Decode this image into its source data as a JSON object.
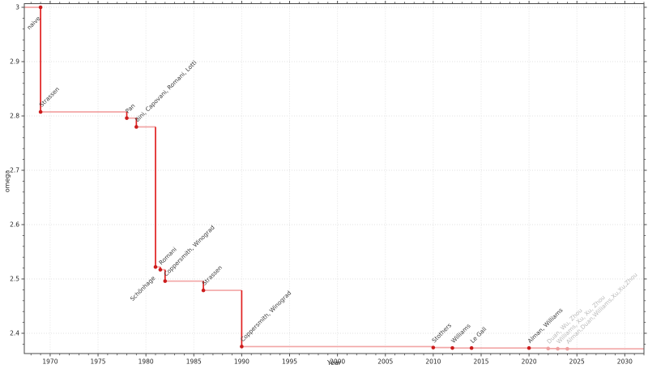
{
  "chart_data": {
    "type": "line",
    "subtype": "step-post",
    "title": "",
    "xlabel": "Year",
    "ylabel": "omega",
    "xlim": [
      1967.3,
      2032.0
    ],
    "ylim": [
      2.3627,
      3.0067
    ],
    "grid": true,
    "legend": false,
    "x_ticks": [
      1970,
      1975,
      1980,
      1985,
      1990,
      1995,
      2000,
      2005,
      2010,
      2015,
      2020,
      2025,
      2030
    ],
    "x_tick_labels": [
      "1970",
      "1975",
      "1980",
      "1985",
      "1990",
      "1995",
      "2000",
      "2005",
      "2010",
      "2015",
      "2020",
      "2025",
      "2030"
    ],
    "x_minor_step": 1,
    "y_ticks": [
      2.4,
      2.5,
      2.6,
      2.7,
      2.8,
      2.9,
      3.0
    ],
    "y_tick_labels": [
      "2.4",
      "2.5",
      "2.6",
      "2.7",
      "2.8",
      "2.9",
      "3"
    ],
    "y_minor_step": 0.02,
    "points": [
      {
        "year": 1969,
        "omega": 3.0,
        "label": "naive",
        "label_side": "below",
        "recent": false
      },
      {
        "year": 1969,
        "omega": 2.8074,
        "label": "Strassen",
        "label_side": "above",
        "recent": false
      },
      {
        "year": 1978,
        "omega": 2.796,
        "label": "Pan",
        "label_side": "above",
        "recent": false
      },
      {
        "year": 1979,
        "omega": 2.7799,
        "label": "Bini, Capovani, Romani, Lotti",
        "label_side": "above",
        "recent": false
      },
      {
        "year": 1981,
        "omega": 2.522,
        "label": "Schönhage",
        "label_side": "below",
        "recent": false
      },
      {
        "year": 1981.5,
        "omega": 2.517,
        "label": "Romani",
        "label_side": "above",
        "recent": false
      },
      {
        "year": 1982,
        "omega": 2.496,
        "label": "Coppersmith, Winograd",
        "label_side": "above",
        "recent": false
      },
      {
        "year": 1986,
        "omega": 2.479,
        "label": "Strassen",
        "label_side": "above",
        "recent": false
      },
      {
        "year": 1990,
        "omega": 2.3755,
        "label": "Coppersmith, Winograd",
        "label_side": "above",
        "recent": false
      },
      {
        "year": 2010,
        "omega": 2.3737,
        "label": "Stothers",
        "label_side": "above",
        "recent": false
      },
      {
        "year": 2012,
        "omega": 2.3729,
        "label": "Williams",
        "label_side": "above",
        "recent": false
      },
      {
        "year": 2014,
        "omega": 2.3728639,
        "label": "Le Gall",
        "label_side": "above",
        "recent": false
      },
      {
        "year": 2020,
        "omega": 2.3728596,
        "label": "Alman, Williams",
        "label_side": "above",
        "recent": false
      },
      {
        "year": 2022,
        "omega": 2.371866,
        "label": "Duan, Wu, Zhou",
        "label_side": "above",
        "recent": true
      },
      {
        "year": 2023,
        "omega": 2.371552,
        "label": "Williams, Xu, Xu, Zhou",
        "label_side": "above",
        "recent": true
      },
      {
        "year": 2024,
        "omega": 2.371339,
        "label": "Alman,Duan,Williams,Xu,Xu,Zhou",
        "label_side": "above",
        "recent": true
      }
    ],
    "colors": {
      "line_red": "#e02020",
      "line_pink": "#f2a6a6",
      "marker": "#cc1c1c",
      "marker_recent": "#eda0a0",
      "label": "#3a3a3a",
      "label_recent": "#b9b9b9",
      "grid": "#e2e2e2",
      "spine": "#4a4a4a",
      "tick_label": "#262626"
    }
  }
}
